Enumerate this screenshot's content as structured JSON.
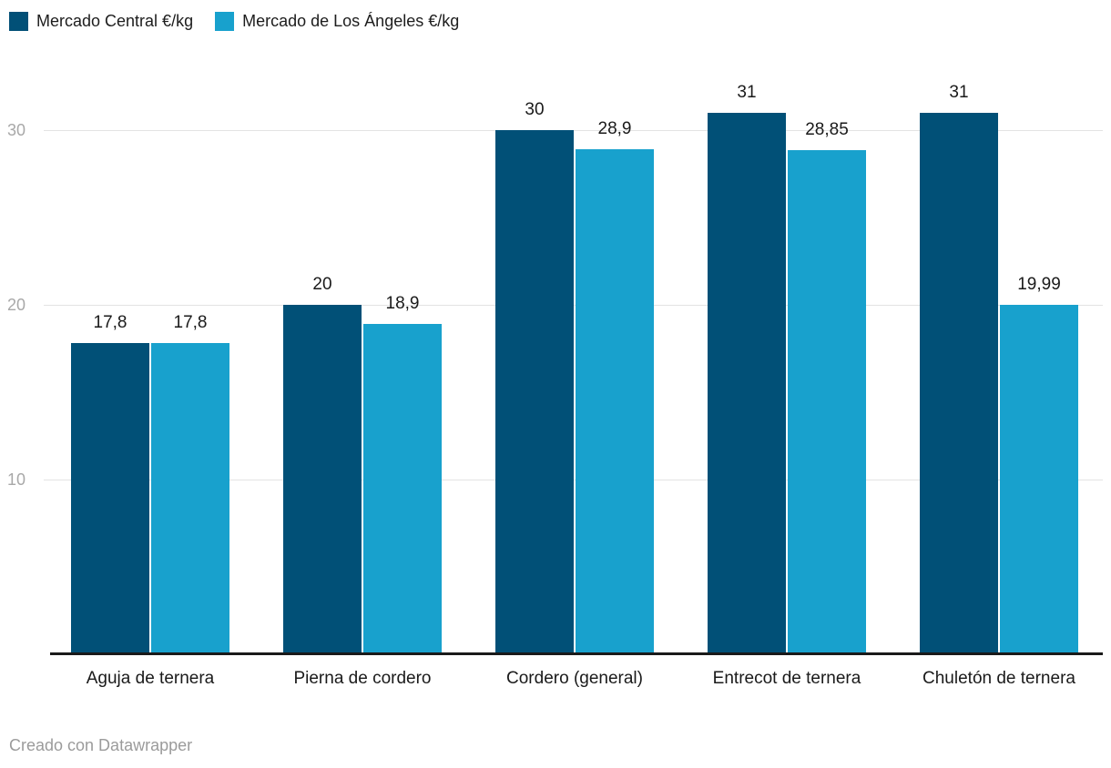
{
  "legend": {
    "items": [
      {
        "label": "Mercado Central €/kg",
        "color": "#015077"
      },
      {
        "label": "Mercado de Los Ángeles €/kg",
        "color": "#18A1CD"
      }
    ]
  },
  "footer": {
    "text": "Creado con Datawrapper"
  },
  "chart_data": {
    "type": "bar",
    "subtype": "grouped-vertical",
    "title": "",
    "xlabel": "",
    "ylabel": "",
    "categories": [
      "Aguja de ternera",
      "Pierna de cordero",
      "Cordero (general)",
      "Entrecot de ternera",
      "Chuletón de ternera"
    ],
    "series": [
      {
        "name": "Mercado Central €/kg",
        "color": "#015077",
        "values": [
          17.8,
          20,
          30,
          31,
          31
        ],
        "labels": [
          "17,8",
          "20",
          "30",
          "31",
          "31"
        ]
      },
      {
        "name": "Mercado de Los Ángeles €/kg",
        "color": "#18A1CD",
        "values": [
          17.8,
          18.9,
          28.9,
          28.85,
          19.99
        ],
        "labels": [
          "17,8",
          "18,9",
          "28,9",
          "28,85",
          "19,99"
        ]
      }
    ],
    "yticks": [
      10,
      20,
      30
    ],
    "ytick_labels": [
      "10",
      "20",
      "30"
    ],
    "ylim": [
      0,
      33.3
    ],
    "grid": true,
    "legend_position": "top-left",
    "value_labels_shown": true
  }
}
